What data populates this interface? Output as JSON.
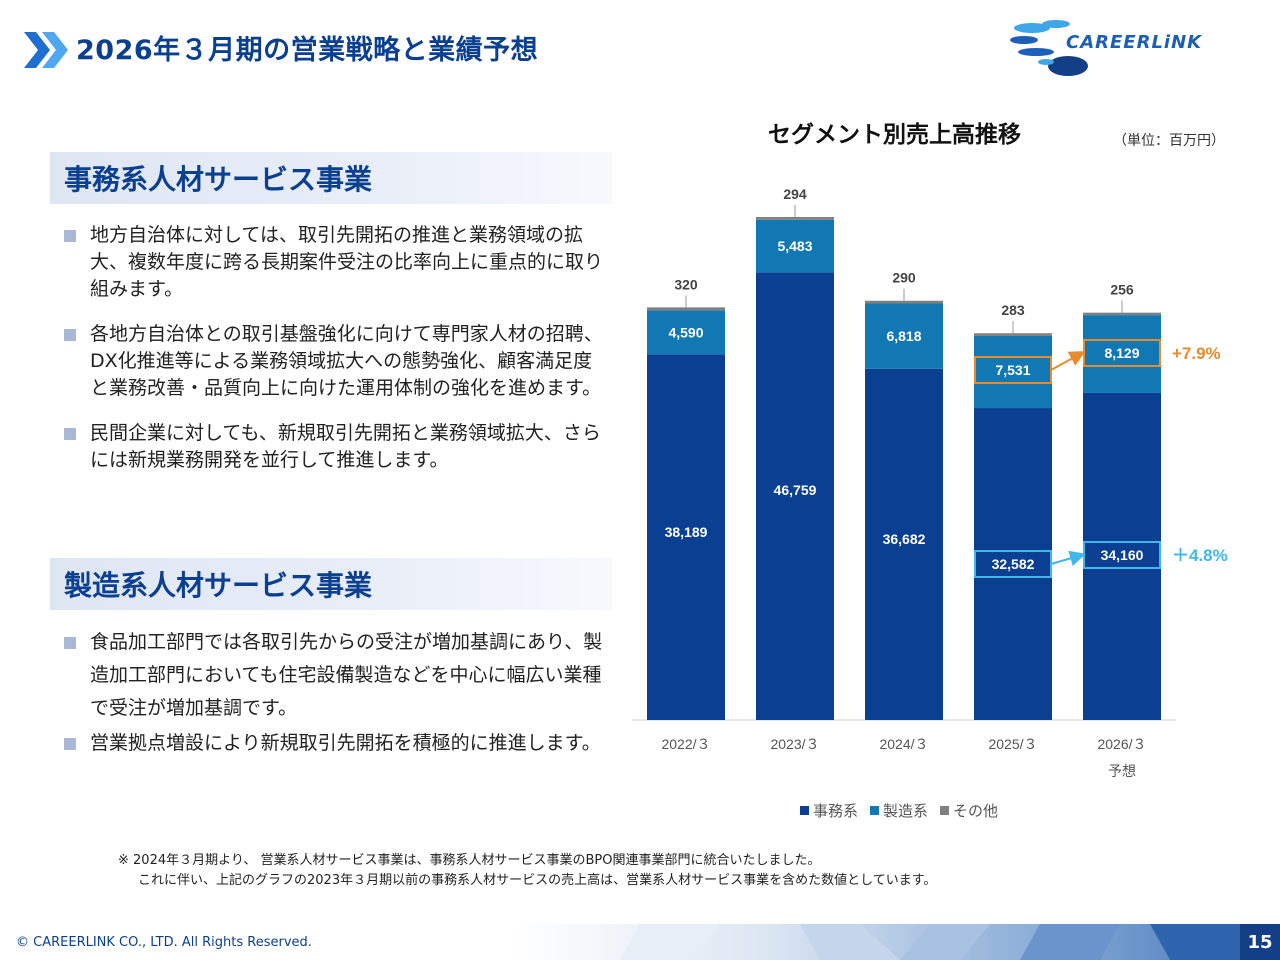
{
  "header": {
    "title": "2026年３月期の営業戦略と業績予想"
  },
  "logo": {
    "text": "CAREERLiNK"
  },
  "sections": {
    "office": {
      "title": "事務系人材サービス事業",
      "bullets": [
        "地方自治体に対しては、取引先開拓の推進と業務領域の拡大、複数年度に跨る長期案件受注の比率向上に重点的に取り組みます。",
        "各地方自治体との取引基盤強化に向けて専門家人材の招聘、DX化推進等による業務領域拡大への態勢強化、顧客満足度と業務改善・品質向上に向けた運用体制の強化を進めます。",
        "民間企業に対しても、新規取引先開拓と業務領域拡大、さらには新規業務開発を並行して推進します。"
      ]
    },
    "manufacturing": {
      "title": "製造系人材サービス事業",
      "bullets": [
        "食品加工部門では各取引先からの受注が増加基調にあり、製造加工部門においても住宅設備製造などを中心に幅広い業種で受注が増加基調です。",
        "営業拠点増設により新規取引先開拓を積極的に推進します。"
      ]
    }
  },
  "chart": {
    "title": "セグメント別売上高推移",
    "unit": "（単位：百万円）"
  },
  "chart_data": {
    "type": "bar",
    "stacked": true,
    "categories": [
      "2022/３",
      "2023/３",
      "2024/３",
      "2025/３",
      "2026/３"
    ],
    "category_sublabels": [
      "",
      "",
      "",
      "",
      "予想"
    ],
    "series": [
      {
        "name": "事務系",
        "values": [
          38189,
          46759,
          36682,
          32582,
          34160
        ],
        "color": "#0a3f91"
      },
      {
        "name": "製造系",
        "values": [
          4590,
          5483,
          6818,
          7531,
          8129
        ],
        "color": "#1278b4"
      },
      {
        "name": "その他",
        "values": [
          320,
          294,
          290,
          283,
          256
        ],
        "color": "#808080"
      }
    ],
    "annotations": [
      {
        "series": "製造系",
        "from": "2025/３",
        "to": "2026/３",
        "text": "+7.9%",
        "color": "#e88a2e"
      },
      {
        "series": "事務系",
        "from": "2025/３",
        "to": "2026/３",
        "text": "＋4.8%",
        "color": "#3fb7e8"
      }
    ],
    "legend_position": "bottom",
    "grid": false
  },
  "legend": {
    "items": [
      "事務系",
      "製造系",
      "その他"
    ]
  },
  "note": {
    "line1": "※ 2024年３月期より、 営業系人材サービス事業は、事務系人材サービス事業のBPO関連事業部門に統合いたしました。",
    "line2": "これに伴い、上記のグラフの2023年３月期以前の事務系人材サービスの売上高は、営業系人材サービス事業を含めた数値としています。"
  },
  "footer": {
    "copyright": "© CAREERLINK CO., LTD. All Rights Reserved.",
    "page": "15"
  }
}
